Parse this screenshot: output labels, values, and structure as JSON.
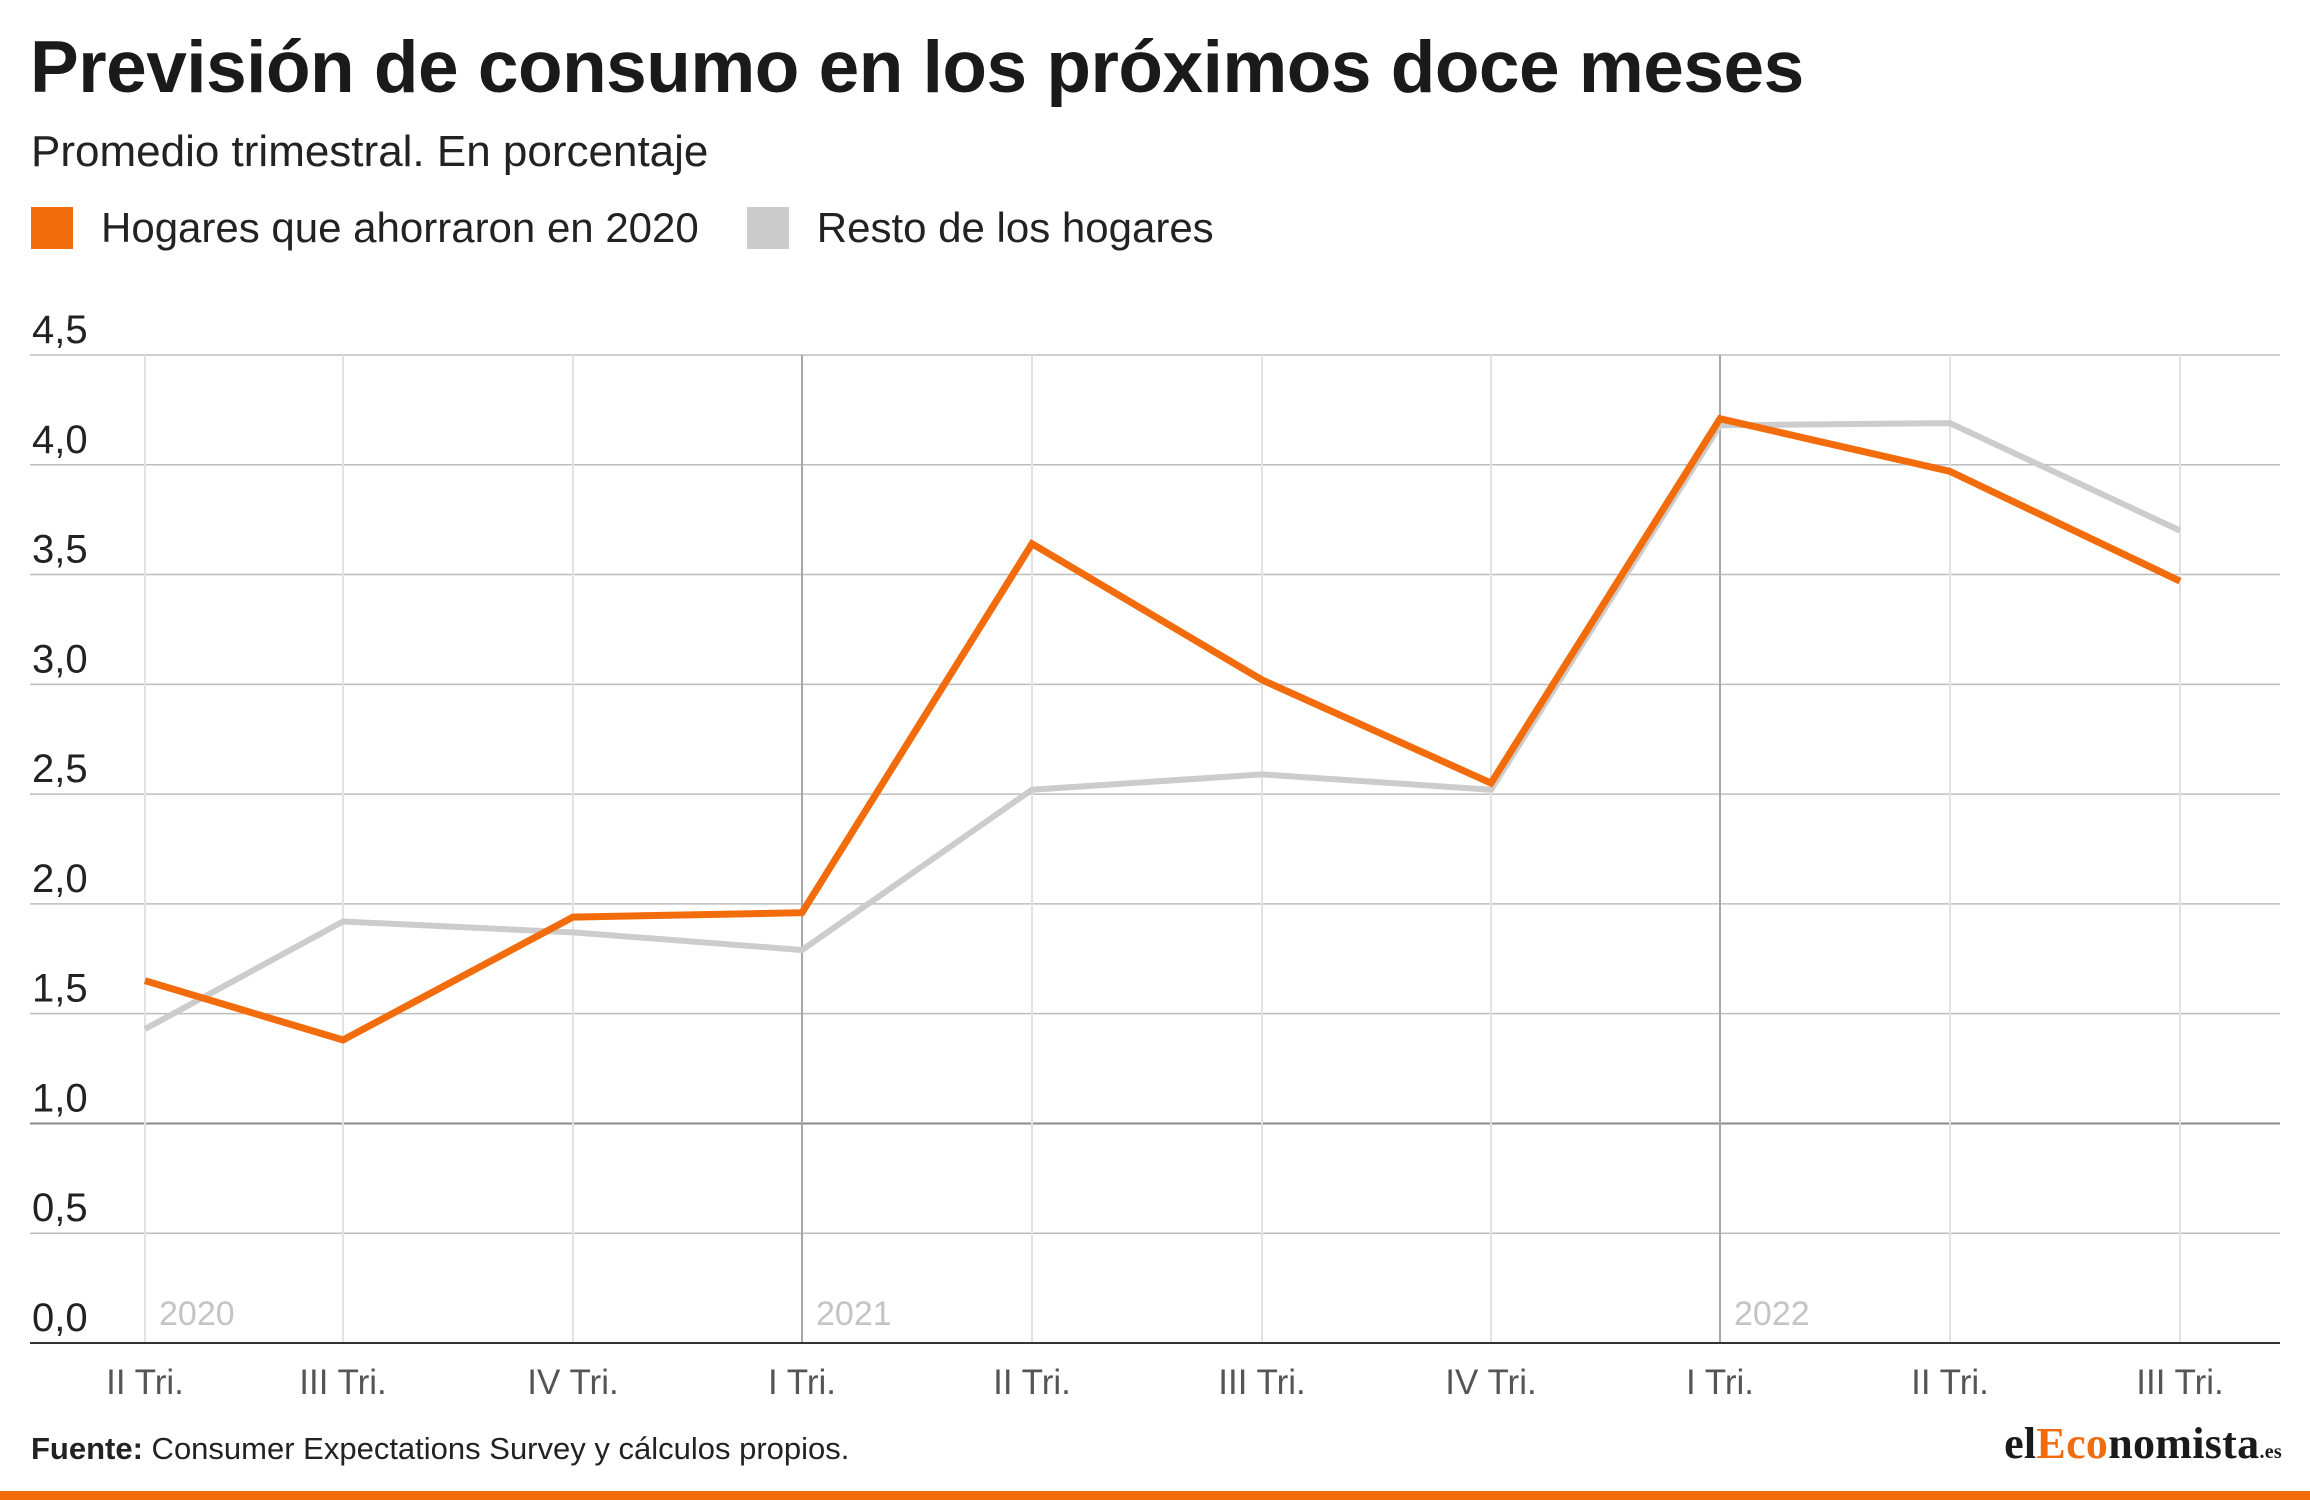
{
  "chart_data": {
    "type": "line",
    "title": "Previsión de consumo en los próximos doce meses",
    "subtitle": "Promedio trimestral. En porcentaje",
    "categories": [
      "II Tri.",
      "III Tri.",
      "IV Tri.",
      "I Tri.",
      "II Tri.",
      "III Tri.",
      "IV Tri.",
      "I Tri.",
      "II Tri.",
      "III Tri."
    ],
    "year_labels": [
      {
        "label": "2020",
        "index": 0
      },
      {
        "label": "2021",
        "index": 3
      },
      {
        "label": "2022",
        "index": 7
      }
    ],
    "series": [
      {
        "name": "Hogares que ahorraron en 2020",
        "color": "#f36c0c",
        "values": [
          1.65,
          1.38,
          1.94,
          1.96,
          3.64,
          3.02,
          2.55,
          4.21,
          3.97,
          3.47
        ]
      },
      {
        "name": "Resto de los hogares",
        "color": "#cccccc",
        "values": [
          1.43,
          1.92,
          1.87,
          1.79,
          2.52,
          2.59,
          2.52,
          4.18,
          4.19,
          3.7
        ]
      }
    ],
    "ylim": [
      0,
      4.5
    ],
    "yticks": [
      "0,0",
      "0,5",
      "1,0",
      "1,5",
      "2,0",
      "2,5",
      "3,0",
      "3,5",
      "4,0",
      "4,5"
    ],
    "xlabel": "",
    "ylabel": "",
    "grid": true,
    "legend": "top-left"
  },
  "footer": {
    "source_label": "Fuente:",
    "source_text": " Consumer Expectations Survey y cálculos propios."
  },
  "brand": {
    "logo_part1": "el",
    "logo_part2": "Eco",
    "logo_part3": "nomista",
    "logo_tld": ".es",
    "accent": "#f36c0c"
  }
}
